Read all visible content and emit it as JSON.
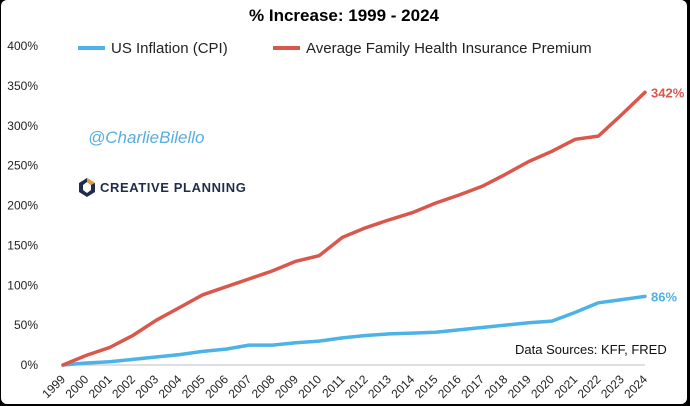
{
  "chart_data": {
    "type": "line",
    "title": "% Increase: 1999 - 2024",
    "xlabel": "",
    "ylabel": "",
    "ylim": [
      0,
      400
    ],
    "y_ticks": [
      "0%",
      "50%",
      "100%",
      "150%",
      "200%",
      "250%",
      "300%",
      "350%",
      "400%"
    ],
    "x": [
      "1999",
      "2000",
      "2001",
      "2002",
      "2003",
      "2004",
      "2005",
      "2006",
      "2007",
      "2008",
      "2009",
      "2010",
      "2011",
      "2012",
      "2013",
      "2014",
      "2015",
      "2016",
      "2017",
      "2018",
      "2019",
      "2020",
      "2021",
      "2022",
      "2023",
      "2024"
    ],
    "series": [
      {
        "name": "US Inflation (CPI)",
        "color": "#4db3e6",
        "values": [
          0,
          2.5,
          4,
          7,
          10,
          13,
          17,
          20,
          25,
          25,
          28,
          30,
          34,
          37,
          39,
          40,
          41,
          44,
          47,
          50,
          53,
          55,
          66,
          78,
          82,
          86
        ],
        "end_label": "86%"
      },
      {
        "name": "Average Family Health Insurance Premium",
        "color": "#d9574b",
        "values": [
          0,
          12,
          22,
          37,
          56,
          72,
          88,
          98,
          108,
          118,
          130,
          137,
          160,
          172,
          182,
          191,
          203,
          213,
          224,
          239,
          255,
          268,
          283,
          287,
          314,
          342
        ],
        "end_label": "342%"
      }
    ],
    "legend_position": "top"
  },
  "watermark": {
    "handle": "@CharlieBilello",
    "brand": "CREATIVE PLANNING"
  },
  "source_note": "Data Sources: KFF, FRED"
}
